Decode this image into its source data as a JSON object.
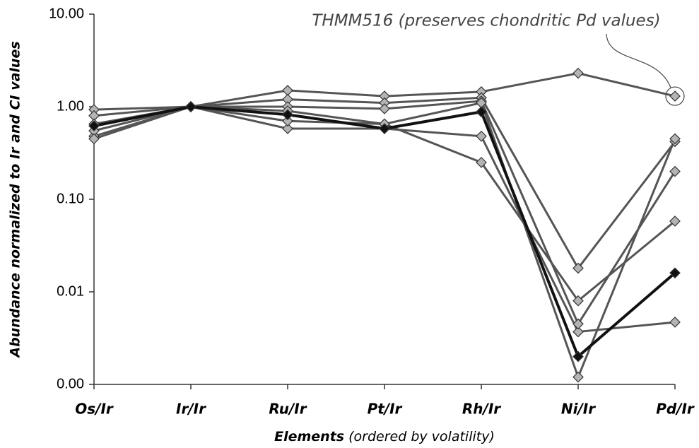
{
  "chart_data": {
    "type": "line",
    "log_y": true,
    "ylabel": "Abundance normalized to Ir and CI values",
    "xlabel": {
      "bold": "Elements",
      "rest": "(ordered by volatility)"
    },
    "annotation": "THMM516 (preserves chondritic Pd values)",
    "categories": [
      "Os/Ir",
      "Ir/Ir",
      "Ru/Ir",
      "Pt/Ir",
      "Rh/Ir",
      "Ni/Ir",
      "Pd/Ir"
    ],
    "ylim": [
      0.001,
      10
    ],
    "yticks": [
      {
        "value": 0.001,
        "label": "0.00"
      },
      {
        "value": 0.01,
        "label": "0.01"
      },
      {
        "value": 0.1,
        "label": "0.10"
      },
      {
        "value": 1,
        "label": "1.00"
      },
      {
        "value": 10,
        "label": "10.00"
      }
    ],
    "series": [
      {
        "color": "#555555",
        "marker_color": "#b4b4b4",
        "values": [
          0.93,
          1,
          1.5,
          1.3,
          1.45,
          2.3,
          1.3
        ]
      },
      {
        "color": "#555555",
        "marker_color": "#b4b4b4",
        "values": [
          0.48,
          1,
          0.58,
          0.58,
          0.48,
          0.0037,
          0.0047
        ]
      },
      {
        "color": "#555555",
        "marker_color": "#b4b4b4",
        "values": [
          0.8,
          1,
          1.2,
          1.1,
          1.25,
          0.018,
          0.42
        ]
      },
      {
        "color": "#555555",
        "marker_color": "#b4b4b4",
        "values": [
          0.55,
          1,
          0.7,
          0.65,
          0.25,
          0.008,
          0.058
        ]
      },
      {
        "color": "#555555",
        "marker_color": "#b4b4b4",
        "values": [
          0.45,
          1,
          1.0,
          0.95,
          1.15,
          0.0045,
          0.2
        ]
      },
      {
        "color": "#555555",
        "marker_color": "#b4b4b4",
        "values": [
          0.65,
          1,
          0.9,
          0.65,
          1.1,
          0.0012,
          0.45
        ]
      },
      {
        "color": "#111111",
        "marker_color": "#111111",
        "values": [
          0.62,
          1,
          0.82,
          0.58,
          0.88,
          0.002,
          0.016
        ]
      }
    ]
  }
}
